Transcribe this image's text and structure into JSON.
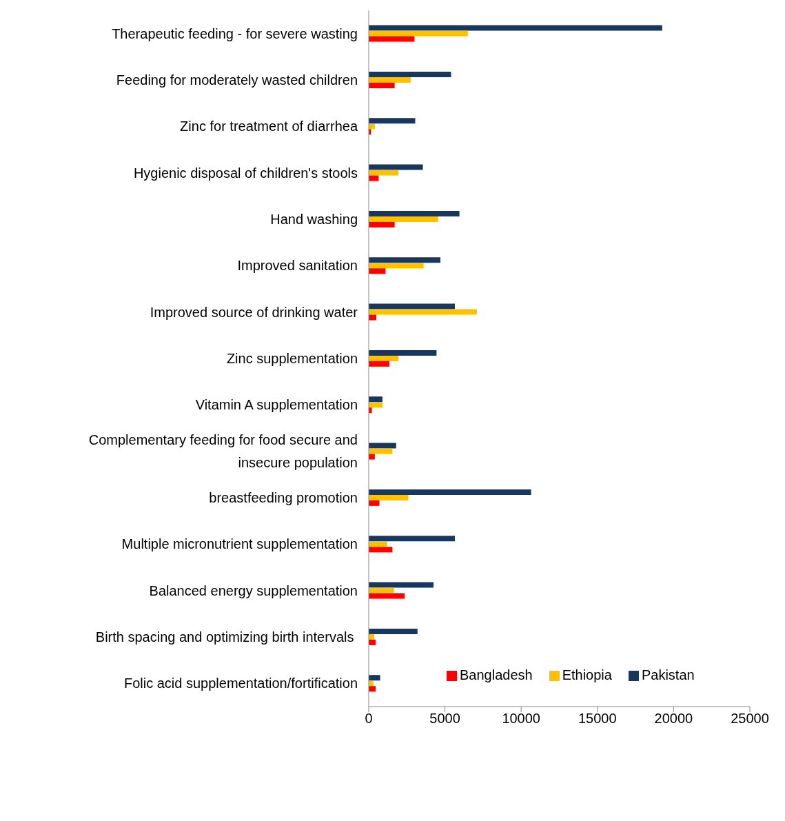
{
  "chart_data": {
    "type": "bar",
    "orientation": "horizontal",
    "categories": [
      "Therapeutic feeding - for severe wasting",
      "Feeding for moderately wasted children",
      "Zinc for treatment of diarrhea",
      "Hygienic disposal of children's stools",
      "Hand washing",
      "Improved sanitation",
      "Improved source of drinking water",
      "Zinc supplementation",
      "Vitamin A supplementation",
      "Complementary feeding for food secure and insecure population",
      "breastfeeding promotion",
      "Multiple micronutrient supplementation",
      "Balanced energy supplementation",
      "Birth spacing and optimizing birth intervals ",
      "Folic acid supplementation/fortification"
    ],
    "series": [
      {
        "name": "Pakistan",
        "color": "#17375e",
        "values": [
          19250,
          5400,
          3050,
          3550,
          5950,
          4700,
          5650,
          4450,
          900,
          1800,
          10650,
          5650,
          4250,
          3200,
          750
        ]
      },
      {
        "name": "Ethiopia",
        "color": "#ffc000",
        "values": [
          6500,
          2750,
          400,
          1950,
          4550,
          3600,
          7100,
          1950,
          900,
          1550,
          2600,
          1200,
          1650,
          350,
          300
        ]
      },
      {
        "name": "Bangladesh",
        "color": "#ff0000",
        "values": [
          3000,
          1700,
          150,
          650,
          1700,
          1100,
          500,
          1350,
          200,
          400,
          700,
          1550,
          2350,
          450,
          450
        ]
      }
    ],
    "xlim": [
      0,
      25000
    ],
    "xticks": [
      0,
      5000,
      10000,
      15000,
      20000,
      25000
    ],
    "grid": false,
    "legend": "bottom right"
  }
}
